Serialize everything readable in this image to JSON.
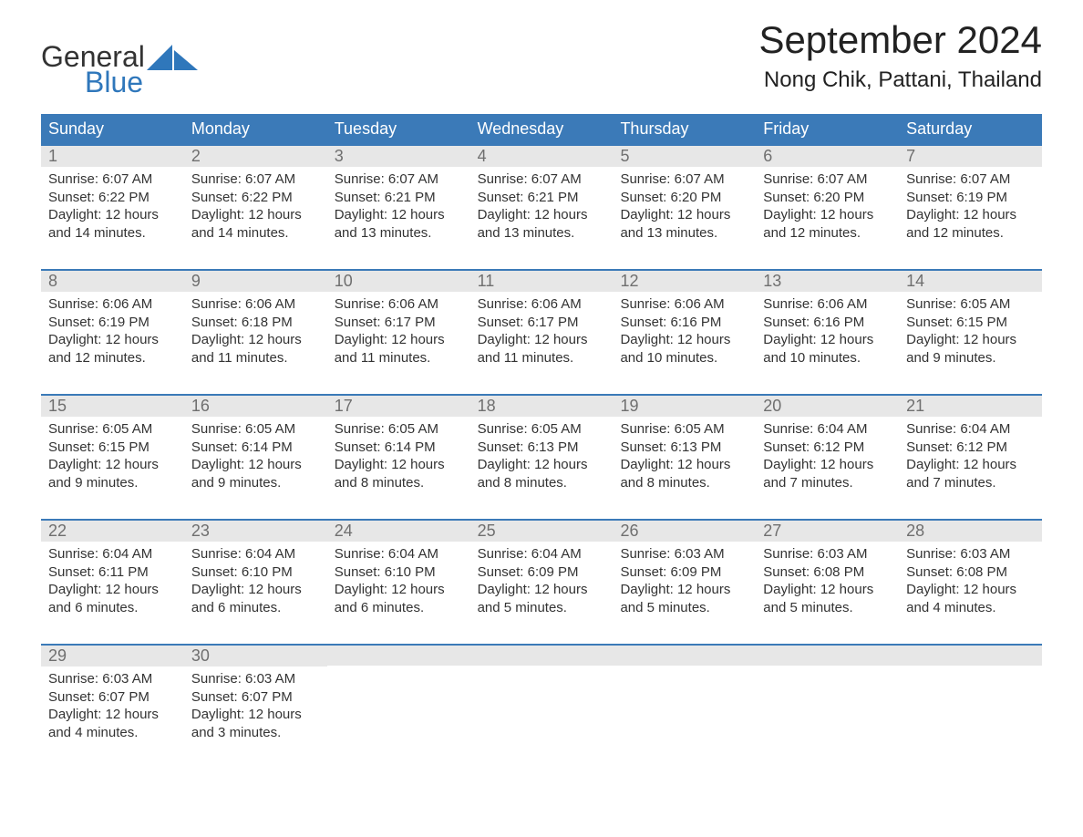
{
  "logo": {
    "top": "General",
    "bottom": "Blue"
  },
  "title": "September 2024",
  "location": "Nong Chik, Pattani, Thailand",
  "colors": {
    "header_bg": "#3b7ab8",
    "header_text": "#ffffff",
    "daynum_bg": "#e7e7e7",
    "daynum_text": "#6f6f6f",
    "body_text": "#333333",
    "logo_blue": "#2f77bb",
    "row_border": "#3b7ab8"
  },
  "typography": {
    "title_fontsize": 42,
    "location_fontsize": 24,
    "dow_fontsize": 18,
    "daynum_fontsize": 18,
    "body_fontsize": 15
  },
  "days_of_week": [
    "Sunday",
    "Monday",
    "Tuesday",
    "Wednesday",
    "Thursday",
    "Friday",
    "Saturday"
  ],
  "weeks": [
    [
      {
        "n": "1",
        "sunrise": "Sunrise: 6:07 AM",
        "sunset": "Sunset: 6:22 PM",
        "daylight": "Daylight: 12 hours and 14 minutes."
      },
      {
        "n": "2",
        "sunrise": "Sunrise: 6:07 AM",
        "sunset": "Sunset: 6:22 PM",
        "daylight": "Daylight: 12 hours and 14 minutes."
      },
      {
        "n": "3",
        "sunrise": "Sunrise: 6:07 AM",
        "sunset": "Sunset: 6:21 PM",
        "daylight": "Daylight: 12 hours and 13 minutes."
      },
      {
        "n": "4",
        "sunrise": "Sunrise: 6:07 AM",
        "sunset": "Sunset: 6:21 PM",
        "daylight": "Daylight: 12 hours and 13 minutes."
      },
      {
        "n": "5",
        "sunrise": "Sunrise: 6:07 AM",
        "sunset": "Sunset: 6:20 PM",
        "daylight": "Daylight: 12 hours and 13 minutes."
      },
      {
        "n": "6",
        "sunrise": "Sunrise: 6:07 AM",
        "sunset": "Sunset: 6:20 PM",
        "daylight": "Daylight: 12 hours and 12 minutes."
      },
      {
        "n": "7",
        "sunrise": "Sunrise: 6:07 AM",
        "sunset": "Sunset: 6:19 PM",
        "daylight": "Daylight: 12 hours and 12 minutes."
      }
    ],
    [
      {
        "n": "8",
        "sunrise": "Sunrise: 6:06 AM",
        "sunset": "Sunset: 6:19 PM",
        "daylight": "Daylight: 12 hours and 12 minutes."
      },
      {
        "n": "9",
        "sunrise": "Sunrise: 6:06 AM",
        "sunset": "Sunset: 6:18 PM",
        "daylight": "Daylight: 12 hours and 11 minutes."
      },
      {
        "n": "10",
        "sunrise": "Sunrise: 6:06 AM",
        "sunset": "Sunset: 6:17 PM",
        "daylight": "Daylight: 12 hours and 11 minutes."
      },
      {
        "n": "11",
        "sunrise": "Sunrise: 6:06 AM",
        "sunset": "Sunset: 6:17 PM",
        "daylight": "Daylight: 12 hours and 11 minutes."
      },
      {
        "n": "12",
        "sunrise": "Sunrise: 6:06 AM",
        "sunset": "Sunset: 6:16 PM",
        "daylight": "Daylight: 12 hours and 10 minutes."
      },
      {
        "n": "13",
        "sunrise": "Sunrise: 6:06 AM",
        "sunset": "Sunset: 6:16 PM",
        "daylight": "Daylight: 12 hours and 10 minutes."
      },
      {
        "n": "14",
        "sunrise": "Sunrise: 6:05 AM",
        "sunset": "Sunset: 6:15 PM",
        "daylight": "Daylight: 12 hours and 9 minutes."
      }
    ],
    [
      {
        "n": "15",
        "sunrise": "Sunrise: 6:05 AM",
        "sunset": "Sunset: 6:15 PM",
        "daylight": "Daylight: 12 hours and 9 minutes."
      },
      {
        "n": "16",
        "sunrise": "Sunrise: 6:05 AM",
        "sunset": "Sunset: 6:14 PM",
        "daylight": "Daylight: 12 hours and 9 minutes."
      },
      {
        "n": "17",
        "sunrise": "Sunrise: 6:05 AM",
        "sunset": "Sunset: 6:14 PM",
        "daylight": "Daylight: 12 hours and 8 minutes."
      },
      {
        "n": "18",
        "sunrise": "Sunrise: 6:05 AM",
        "sunset": "Sunset: 6:13 PM",
        "daylight": "Daylight: 12 hours and 8 minutes."
      },
      {
        "n": "19",
        "sunrise": "Sunrise: 6:05 AM",
        "sunset": "Sunset: 6:13 PM",
        "daylight": "Daylight: 12 hours and 8 minutes."
      },
      {
        "n": "20",
        "sunrise": "Sunrise: 6:04 AM",
        "sunset": "Sunset: 6:12 PM",
        "daylight": "Daylight: 12 hours and 7 minutes."
      },
      {
        "n": "21",
        "sunrise": "Sunrise: 6:04 AM",
        "sunset": "Sunset: 6:12 PM",
        "daylight": "Daylight: 12 hours and 7 minutes."
      }
    ],
    [
      {
        "n": "22",
        "sunrise": "Sunrise: 6:04 AM",
        "sunset": "Sunset: 6:11 PM",
        "daylight": "Daylight: 12 hours and 6 minutes."
      },
      {
        "n": "23",
        "sunrise": "Sunrise: 6:04 AM",
        "sunset": "Sunset: 6:10 PM",
        "daylight": "Daylight: 12 hours and 6 minutes."
      },
      {
        "n": "24",
        "sunrise": "Sunrise: 6:04 AM",
        "sunset": "Sunset: 6:10 PM",
        "daylight": "Daylight: 12 hours and 6 minutes."
      },
      {
        "n": "25",
        "sunrise": "Sunrise: 6:04 AM",
        "sunset": "Sunset: 6:09 PM",
        "daylight": "Daylight: 12 hours and 5 minutes."
      },
      {
        "n": "26",
        "sunrise": "Sunrise: 6:03 AM",
        "sunset": "Sunset: 6:09 PM",
        "daylight": "Daylight: 12 hours and 5 minutes."
      },
      {
        "n": "27",
        "sunrise": "Sunrise: 6:03 AM",
        "sunset": "Sunset: 6:08 PM",
        "daylight": "Daylight: 12 hours and 5 minutes."
      },
      {
        "n": "28",
        "sunrise": "Sunrise: 6:03 AM",
        "sunset": "Sunset: 6:08 PM",
        "daylight": "Daylight: 12 hours and 4 minutes."
      }
    ],
    [
      {
        "n": "29",
        "sunrise": "Sunrise: 6:03 AM",
        "sunset": "Sunset: 6:07 PM",
        "daylight": "Daylight: 12 hours and 4 minutes."
      },
      {
        "n": "30",
        "sunrise": "Sunrise: 6:03 AM",
        "sunset": "Sunset: 6:07 PM",
        "daylight": "Daylight: 12 hours and 3 minutes."
      },
      {
        "empty": true
      },
      {
        "empty": true
      },
      {
        "empty": true
      },
      {
        "empty": true
      },
      {
        "empty": true
      }
    ]
  ]
}
